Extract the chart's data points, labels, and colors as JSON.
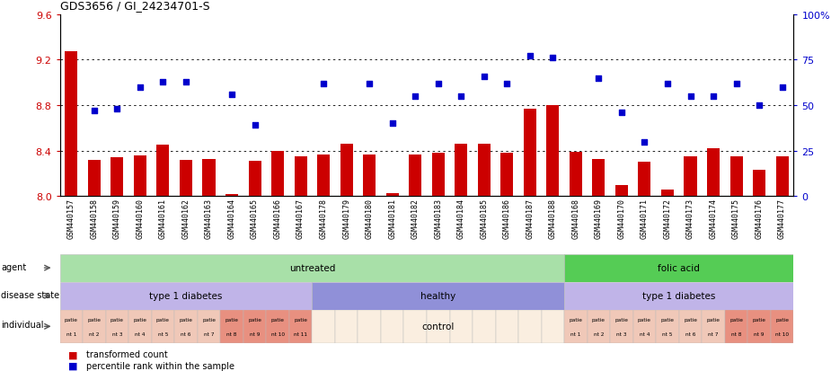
{
  "title": "GDS3656 / GI_24234701-S",
  "samples": [
    "GSM440157",
    "GSM440158",
    "GSM440159",
    "GSM440160",
    "GSM440161",
    "GSM440162",
    "GSM440163",
    "GSM440164",
    "GSM440165",
    "GSM440166",
    "GSM440167",
    "GSM440178",
    "GSM440179",
    "GSM440180",
    "GSM440181",
    "GSM440182",
    "GSM440183",
    "GSM440184",
    "GSM440185",
    "GSM440186",
    "GSM440187",
    "GSM440188",
    "GSM440168",
    "GSM440169",
    "GSM440170",
    "GSM440171",
    "GSM440172",
    "GSM440173",
    "GSM440174",
    "GSM440175",
    "GSM440176",
    "GSM440177"
  ],
  "bar_values": [
    9.27,
    8.32,
    8.34,
    8.36,
    8.45,
    8.32,
    8.33,
    8.02,
    8.31,
    8.4,
    8.35,
    8.37,
    8.46,
    8.37,
    8.03,
    8.37,
    8.38,
    8.46,
    8.46,
    8.38,
    8.77,
    8.8,
    8.39,
    8.33,
    8.1,
    8.3,
    8.06,
    8.35,
    8.42,
    8.35,
    8.23,
    8.35
  ],
  "dot_values": [
    null,
    47,
    48,
    60,
    63,
    63,
    null,
    56,
    39,
    null,
    null,
    62,
    null,
    62,
    40,
    55,
    62,
    55,
    66,
    62,
    77,
    76,
    null,
    65,
    46,
    30,
    62,
    55,
    55,
    62,
    50,
    60
  ],
  "ylim_left": [
    8.0,
    9.6
  ],
  "ylim_right": [
    0,
    100
  ],
  "yticks_left": [
    8.0,
    8.4,
    8.8,
    9.2,
    9.6
  ],
  "yticks_right": [
    0,
    25,
    50,
    75,
    100
  ],
  "bar_color": "#cc0000",
  "dot_color": "#0000cc",
  "agent_groups": [
    {
      "label": "untreated",
      "start": 0,
      "end": 21,
      "color": "#a8e0a8"
    },
    {
      "label": "folic acid",
      "start": 22,
      "end": 31,
      "color": "#55cc55"
    }
  ],
  "disease_groups": [
    {
      "label": "type 1 diabetes",
      "start": 0,
      "end": 10,
      "color": "#c0b4e8"
    },
    {
      "label": "healthy",
      "start": 11,
      "end": 21,
      "color": "#9090d8"
    },
    {
      "label": "type 1 diabetes",
      "start": 22,
      "end": 31,
      "color": "#c0b4e8"
    }
  ],
  "individual_groups": [
    {
      "label": "patie\nnt 1",
      "start": 0,
      "end": 0,
      "color": "#f0c8b8"
    },
    {
      "label": "patie\nnt 2",
      "start": 1,
      "end": 1,
      "color": "#f0c8b8"
    },
    {
      "label": "patie\nnt 3",
      "start": 2,
      "end": 2,
      "color": "#f0c8b8"
    },
    {
      "label": "patie\nnt 4",
      "start": 3,
      "end": 3,
      "color": "#f0c8b8"
    },
    {
      "label": "patie\nnt 5",
      "start": 4,
      "end": 4,
      "color": "#f0c8b8"
    },
    {
      "label": "patie\nnt 6",
      "start": 5,
      "end": 5,
      "color": "#f0c8b8"
    },
    {
      "label": "patie\nnt 7",
      "start": 6,
      "end": 6,
      "color": "#f0c8b8"
    },
    {
      "label": "patie\nnt 8",
      "start": 7,
      "end": 7,
      "color": "#e89080"
    },
    {
      "label": "patie\nnt 9",
      "start": 8,
      "end": 8,
      "color": "#e89080"
    },
    {
      "label": "patie\nnt 10",
      "start": 9,
      "end": 9,
      "color": "#e89080"
    },
    {
      "label": "patie\nnt 11",
      "start": 10,
      "end": 10,
      "color": "#e89080"
    },
    {
      "label": "control",
      "start": 11,
      "end": 21,
      "color": "#faeee0"
    },
    {
      "label": "patie\nnt 1",
      "start": 22,
      "end": 22,
      "color": "#f0c8b8"
    },
    {
      "label": "patie\nnt 2",
      "start": 23,
      "end": 23,
      "color": "#f0c8b8"
    },
    {
      "label": "patie\nnt 3",
      "start": 24,
      "end": 24,
      "color": "#f0c8b8"
    },
    {
      "label": "patie\nnt 4",
      "start": 25,
      "end": 25,
      "color": "#f0c8b8"
    },
    {
      "label": "patie\nnt 5",
      "start": 26,
      "end": 26,
      "color": "#f0c8b8"
    },
    {
      "label": "patie\nnt 6",
      "start": 27,
      "end": 27,
      "color": "#f0c8b8"
    },
    {
      "label": "patie\nnt 7",
      "start": 28,
      "end": 28,
      "color": "#f0c8b8"
    },
    {
      "label": "patie\nnt 8",
      "start": 29,
      "end": 29,
      "color": "#e89080"
    },
    {
      "label": "patie\nnt 9",
      "start": 30,
      "end": 30,
      "color": "#e89080"
    },
    {
      "label": "patie\nnt 10",
      "start": 31,
      "end": 31,
      "color": "#e89080"
    }
  ],
  "legend_bar_label": "transformed count",
  "legend_dot_label": "percentile rank within the sample",
  "background_color": "#ffffff",
  "xtick_bg": "#d8d8d8"
}
